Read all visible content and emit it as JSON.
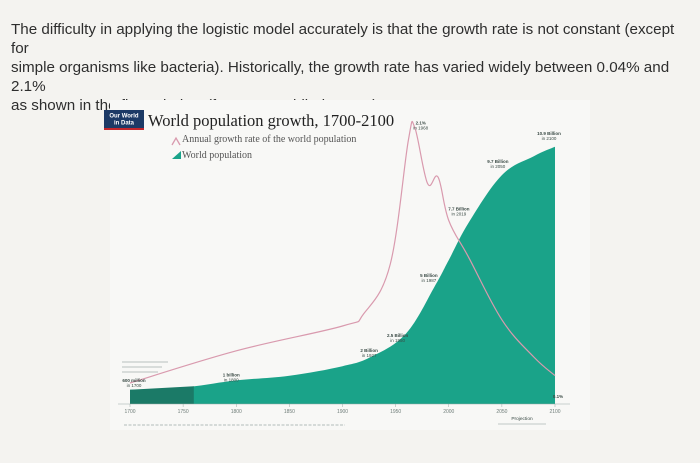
{
  "intro": {
    "line1": "The difficulty in applying the logistic model accurately is that the growth rate is not constant (except for",
    "line2": "simple organisms like bacteria). Historically, the growth rate has varied widely between 0.04% and 2.1%",
    "line3": "as shown in the figure below (from ourworldindata.org):"
  },
  "logo": {
    "line1": "Our World",
    "line2": "in Data"
  },
  "colors": {
    "population_fill": "#1aa389",
    "projection_fill": "#129276",
    "early_fill": "#1b7a67",
    "growth_line": "#d99aae",
    "logo_bg": "#1c3a66",
    "logo_accent": "#c2272d"
  },
  "chart_data": {
    "type": "area",
    "title": "World population growth, 1700-2100",
    "series": [
      {
        "name": "Annual growth rate of the world population",
        "x": [
          1700,
          1800,
          1900,
          1920,
          1945,
          1962,
          1968,
          1980,
          1990,
          2000,
          2019,
          2050,
          2080,
          2100
        ],
        "y": [
          0.04,
          0.3,
          0.5,
          0.6,
          1.0,
          2.0,
          2.1,
          1.65,
          1.7,
          1.35,
          1.05,
          0.55,
          0.25,
          0.1
        ]
      },
      {
        "name": "World population",
        "x": [
          1700,
          1750,
          1800,
          1850,
          1900,
          1927,
          1960,
          1987,
          2000,
          2019,
          2050,
          2080,
          2100
        ],
        "y": [
          0.6,
          0.7,
          1.0,
          1.2,
          1.6,
          2.0,
          3.0,
          5.0,
          6.1,
          7.7,
          9.7,
          10.5,
          10.9
        ]
      }
    ],
    "annotations": [
      {
        "text": "2.1%",
        "sub": "in 1968"
      },
      {
        "text": "10.9 Billion",
        "sub": "in 2100"
      },
      {
        "text": "9.7 Billion",
        "sub": "in 2050"
      },
      {
        "text": "7.7 Billion",
        "sub": "in 2019"
      },
      {
        "text": "5 Billion",
        "sub": "in 1987"
      },
      {
        "text": "2.5 Billion",
        "sub": "in 1950"
      },
      {
        "text": "2 Billion",
        "sub": "in 1927"
      },
      {
        "text": "1 billion",
        "sub": "in 1800"
      },
      {
        "text": "600 million",
        "sub": "in 1700"
      },
      {
        "text": "0.1%"
      }
    ],
    "x_ticks": [
      "1700",
      "1750",
      "1800",
      "1850",
      "1900",
      "1950",
      "2000",
      "2050",
      "2100"
    ],
    "projection_label": "Projection",
    "xlim": [
      1700,
      2100
    ]
  }
}
